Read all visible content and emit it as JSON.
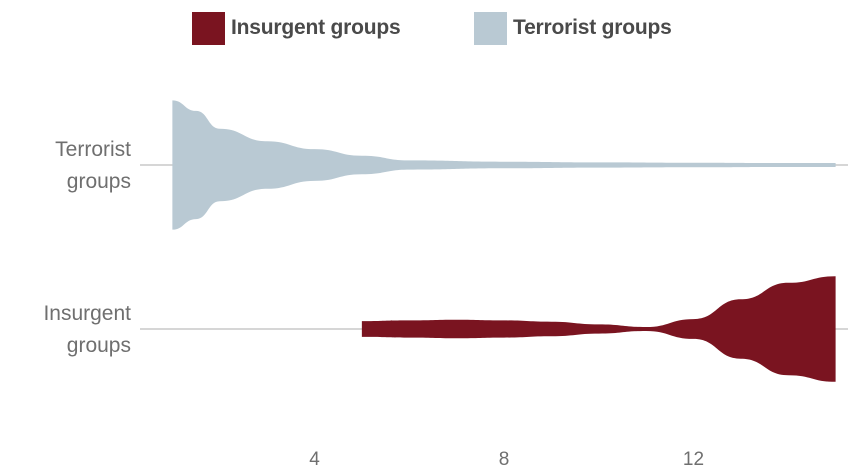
{
  "legend": {
    "insurgent_label": "Insurgent groups",
    "terrorist_label": "Terrorist groups"
  },
  "colors": {
    "insurgent": "#7a1420",
    "terrorist": "#b9c9d3",
    "axis_line": "#bdbdbd",
    "text": "#6f6f6f"
  },
  "chart_data": {
    "type": "violin",
    "x_ticks": [
      4,
      8,
      12
    ],
    "xlim": [
      0,
      15
    ],
    "grid": false,
    "legend_position": "top-center",
    "series": [
      {
        "name": "Terrorist groups",
        "category_lines": [
          "Terrorist",
          "groups"
        ],
        "density": [
          [
            1,
            0.98
          ],
          [
            1.5,
            0.82
          ],
          [
            2,
            0.55
          ],
          [
            3,
            0.36
          ],
          [
            4,
            0.24
          ],
          [
            5,
            0.14
          ],
          [
            6,
            0.07
          ],
          [
            8,
            0.05
          ],
          [
            10,
            0.04
          ],
          [
            12,
            0.035
          ],
          [
            14,
            0.03
          ],
          [
            15,
            0.03
          ]
        ]
      },
      {
        "name": "Insurgent groups",
        "category_lines": [
          "Insurgent",
          "groups"
        ],
        "density": [
          [
            5,
            0.12
          ],
          [
            6,
            0.13
          ],
          [
            7,
            0.14
          ],
          [
            8,
            0.13
          ],
          [
            9,
            0.11
          ],
          [
            10,
            0.07
          ],
          [
            11,
            0.03
          ],
          [
            12,
            0.15
          ],
          [
            13,
            0.45
          ],
          [
            14,
            0.7
          ],
          [
            15,
            0.8
          ]
        ]
      }
    ]
  }
}
